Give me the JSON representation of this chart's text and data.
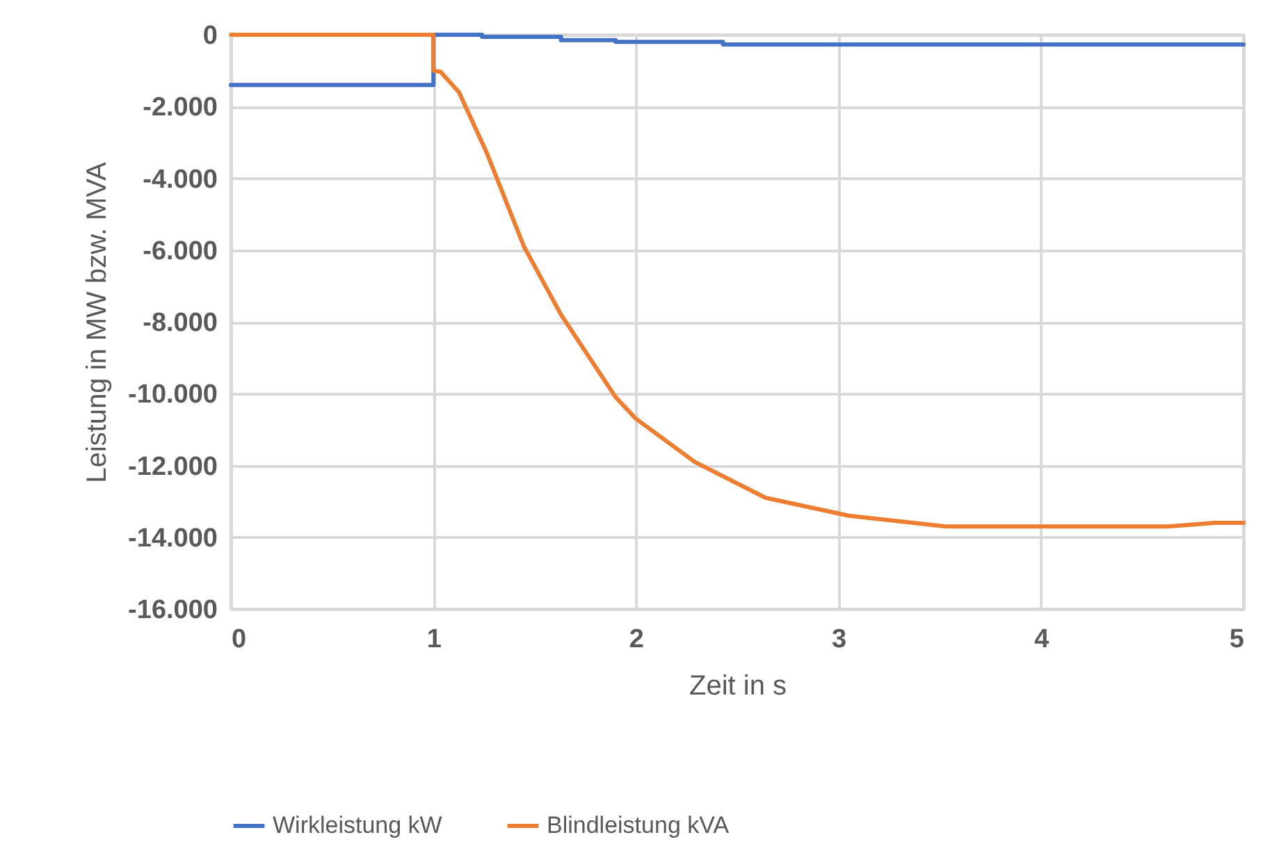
{
  "chart_data": {
    "type": "line",
    "xlabel": "Zeit in s",
    "ylabel": "Leistung in MW bzw. MVA",
    "xlim": [
      0,
      5
    ],
    "xticks": [
      0,
      1,
      2,
      3,
      4,
      5
    ],
    "ylim": [
      -16000,
      0
    ],
    "yticks": [
      {
        "value": -16000,
        "label": "-16.000"
      },
      {
        "value": -14000,
        "label": "-14.000"
      },
      {
        "value": -12000,
        "label": "-12.000"
      },
      {
        "value": -10000,
        "label": "-10.000"
      },
      {
        "value": -8000,
        "label": "-8.000"
      },
      {
        "value": -6000,
        "label": "-6.000"
      },
      {
        "value": -4000,
        "label": "-4.000"
      },
      {
        "value": -2000,
        "label": "-2.000"
      },
      0
    ],
    "grid": true,
    "legend": "bottom",
    "marker": "none",
    "line_style": "solid",
    "series": [
      {
        "name": "Wirkleistung kW",
        "color": "#4472c4",
        "x": [
          0,
          1,
          1,
          1.24,
          1.24,
          1.63,
          1.63,
          1.9,
          1.9,
          2.43,
          2.43,
          5
        ],
        "values": [
          -1400,
          -1400,
          0,
          0,
          -60,
          -60,
          -150,
          -150,
          -200,
          -200,
          -270,
          -270
        ]
      },
      {
        "name": "Blindleistung kVA",
        "color": "#ed7d31",
        "x": [
          0,
          1,
          1,
          1.035,
          1.126,
          1.264,
          1.447,
          1.63,
          1.9,
          2.0,
          2.29,
          2.64,
          3.05,
          3.53,
          4.63,
          4.86,
          5
        ],
        "values": [
          0,
          0,
          -1000,
          -1030,
          -1600,
          -3300,
          -5900,
          -7800,
          -10100,
          -10700,
          -11900,
          -12900,
          -13400,
          -13700,
          -13700,
          -13600,
          -13600
        ]
      }
    ]
  }
}
